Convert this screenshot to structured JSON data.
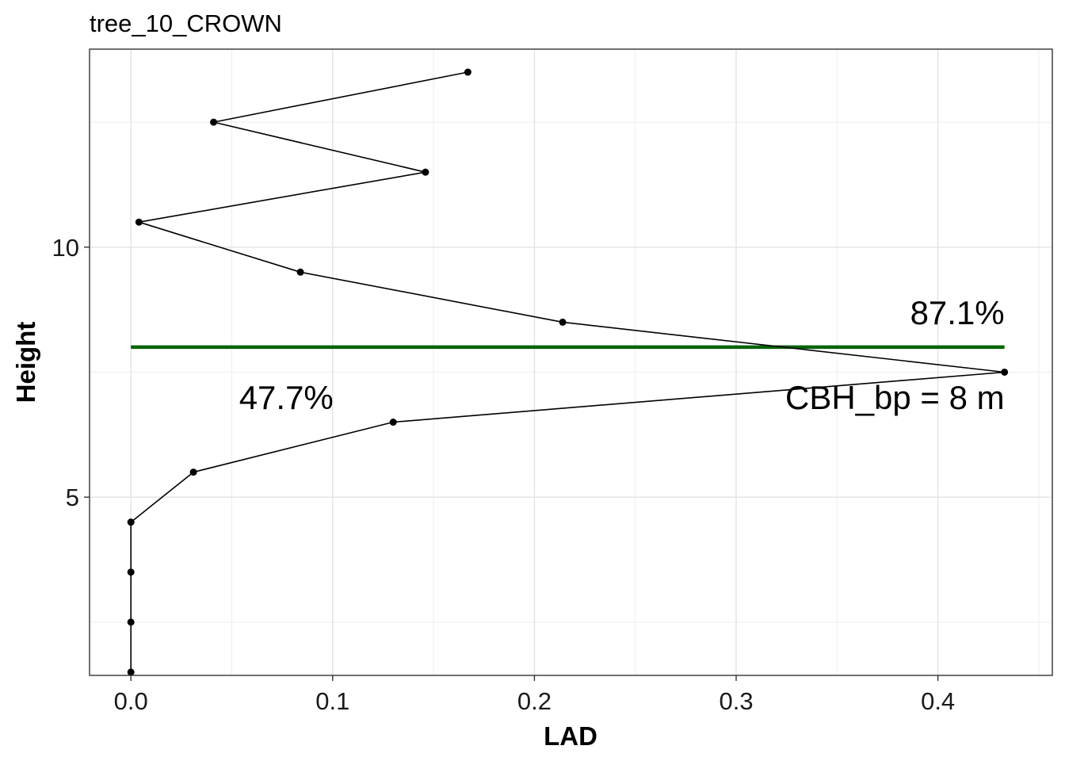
{
  "chart_data": {
    "type": "line",
    "title": "tree_10_CROWN",
    "xlabel": "LAD",
    "ylabel": "Height",
    "xlim": [
      -0.0205,
      0.4567
    ],
    "ylim": [
      1.435,
      13.96
    ],
    "x_ticks": [
      0.0,
      0.1,
      0.2,
      0.3,
      0.4
    ],
    "x_tick_labels": [
      "0.0",
      "0.1",
      "0.2",
      "0.3",
      "0.4"
    ],
    "y_ticks": [
      5,
      10
    ],
    "y_tick_labels": [
      "5",
      "10"
    ],
    "grid": true,
    "series": [
      {
        "color": "#000000",
        "x": [
          0.0,
          0.0,
          0.0,
          0.0,
          0.031,
          0.13,
          0.433,
          0.214,
          0.084,
          0.004,
          0.146,
          0.041,
          0.167
        ],
        "y": [
          1.5,
          2.5,
          3.5,
          4.5,
          5.5,
          6.5,
          7.5,
          8.5,
          9.5,
          10.5,
          11.5,
          12.5,
          13.5
        ]
      }
    ],
    "reference_line": {
      "y": 8,
      "x_start": 0.0,
      "x_end": 0.433,
      "color": "#006400"
    },
    "annotations": [
      {
        "key": "pct_above",
        "text": "87.1%",
        "x": 0.433,
        "y": 8.7,
        "anchor": "end"
      },
      {
        "key": "pct_below",
        "text": "47.7%",
        "x": 0.077,
        "y": 7.0,
        "anchor": "middle"
      },
      {
        "key": "cbh",
        "text": "CBH_bp = 8 m",
        "x": 0.433,
        "y": 7.0,
        "anchor": "end"
      }
    ]
  }
}
